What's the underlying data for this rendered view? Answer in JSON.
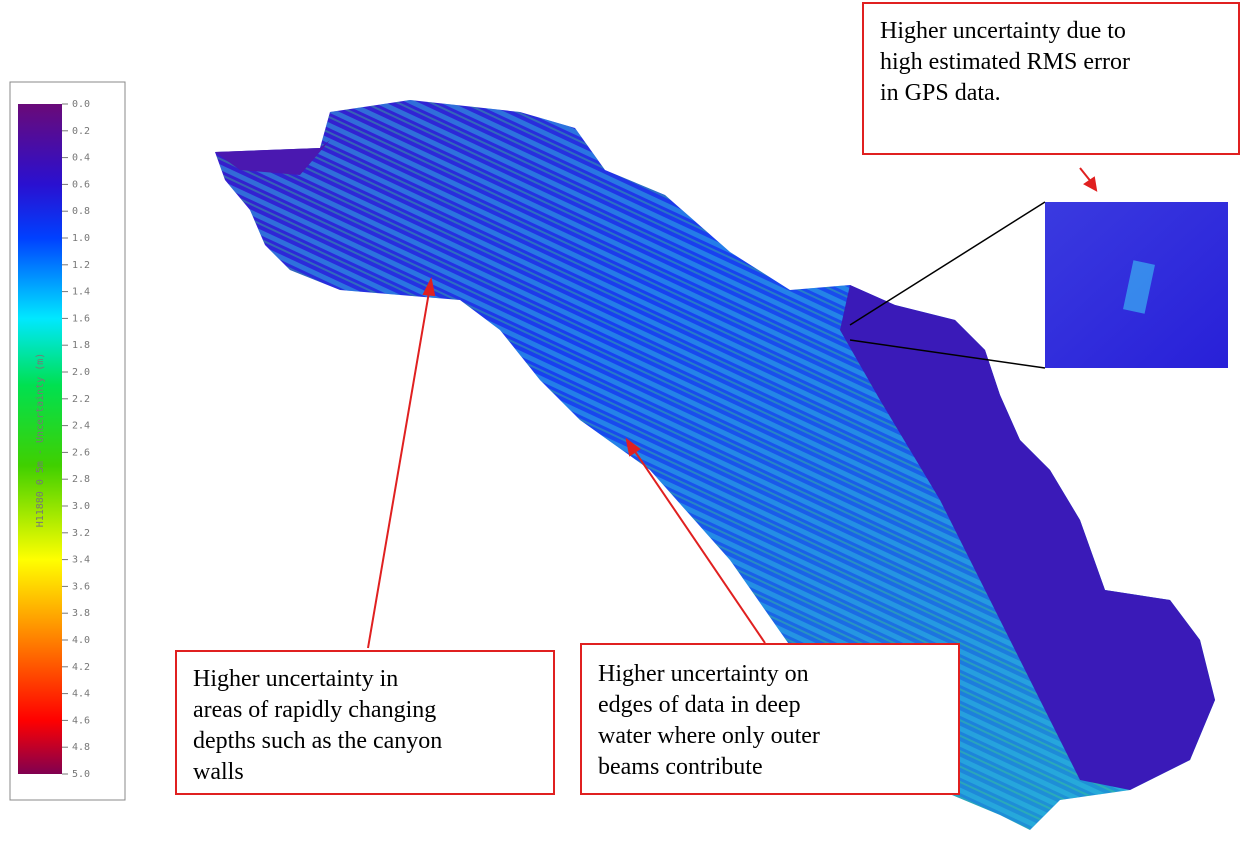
{
  "colorbar": {
    "label": "H11880 0 5m - Uncertainty (m)",
    "ticks": [
      "0.0",
      "0.2",
      "0.4",
      "0.6",
      "0.8",
      "1.0",
      "1.2",
      "1.4",
      "1.6",
      "1.8",
      "2.0",
      "2.2",
      "2.4",
      "2.6",
      "2.8",
      "3.0",
      "3.2",
      "3.4",
      "3.6",
      "3.8",
      "4.0",
      "4.2",
      "4.4",
      "4.6",
      "4.8",
      "5.0"
    ]
  },
  "annotations": [
    {
      "lines": [
        "Higher uncertainty due to",
        "high estimated RMS error",
        "in GPS data."
      ]
    },
    {
      "lines": [
        "Higher uncertainty in",
        "areas of rapidly changing",
        "depths such as the canyon",
        "walls"
      ]
    },
    {
      "lines": [
        "Higher uncertainty on",
        "edges of data in deep",
        "water where only outer",
        "beams contribute"
      ]
    }
  ]
}
